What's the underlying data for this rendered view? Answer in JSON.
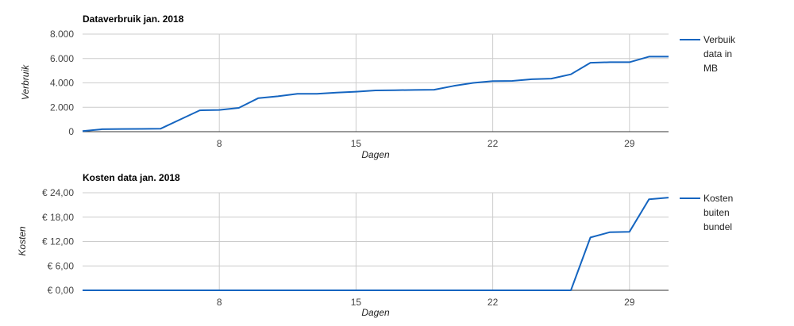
{
  "colors": {
    "series": "#1565c0",
    "grid": "#cccccc",
    "baseline": "#333333"
  },
  "chart_data": [
    {
      "type": "line",
      "title": "Dataverbruik jan. 2018",
      "xlabel": "Dagen",
      "ylabel": "Verbruik",
      "xlim": [
        1,
        31
      ],
      "ylim": [
        0,
        8000
      ],
      "x_ticks": [
        8,
        15,
        22,
        29
      ],
      "x_tick_labels": [
        "8",
        "15",
        "22",
        "29"
      ],
      "y_ticks": [
        0,
        2000,
        4000,
        6000,
        8000
      ],
      "y_tick_labels": [
        "0",
        "2.000",
        "4.000",
        "6.000",
        "8.000"
      ],
      "grid": true,
      "legend_position": "right",
      "series": [
        {
          "name": "Verbuik data in MB",
          "legend_lines": [
            "Verbuik",
            "data in",
            "MB"
          ],
          "x": [
            1,
            2,
            3,
            4,
            5,
            6,
            7,
            8,
            9,
            10,
            11,
            12,
            13,
            14,
            15,
            16,
            17,
            18,
            19,
            20,
            21,
            22,
            23,
            24,
            25,
            26,
            27,
            28,
            29,
            30,
            31
          ],
          "values": [
            50,
            200,
            220,
            230,
            250,
            1000,
            1750,
            1780,
            1950,
            2750,
            2900,
            3100,
            3100,
            3200,
            3280,
            3380,
            3400,
            3420,
            3440,
            3750,
            4000,
            4150,
            4160,
            4300,
            4350,
            4700,
            5650,
            5700,
            5700,
            6150,
            6150
          ]
        }
      ]
    },
    {
      "type": "line",
      "title": "Kosten data jan. 2018",
      "xlabel": "Dagen",
      "ylabel": "Kosten",
      "xlim": [
        1,
        31
      ],
      "ylim": [
        0,
        24
      ],
      "x_ticks": [
        8,
        15,
        22,
        29
      ],
      "x_tick_labels": [
        "8",
        "15",
        "22",
        "29"
      ],
      "y_ticks": [
        0,
        6,
        12,
        18,
        24
      ],
      "y_tick_labels": [
        "€ 0,00",
        "€ 6,00",
        "€ 12,00",
        "€ 18,00",
        "€ 24,00"
      ],
      "grid": true,
      "legend_position": "right",
      "series": [
        {
          "name": "Kosten buiten bundel",
          "legend_lines": [
            "Kosten",
            "buiten",
            "bundel"
          ],
          "x": [
            1,
            2,
            3,
            4,
            5,
            6,
            7,
            8,
            9,
            10,
            11,
            12,
            13,
            14,
            15,
            16,
            17,
            18,
            19,
            20,
            21,
            22,
            23,
            24,
            25,
            26,
            27,
            28,
            29,
            30,
            31
          ],
          "values": [
            0,
            0,
            0,
            0,
            0,
            0,
            0,
            0,
            0,
            0,
            0,
            0,
            0,
            0,
            0,
            0,
            0,
            0,
            0,
            0,
            0,
            0,
            0,
            0,
            0,
            0,
            13,
            14.3,
            14.4,
            22.4,
            22.8
          ]
        }
      ]
    }
  ]
}
